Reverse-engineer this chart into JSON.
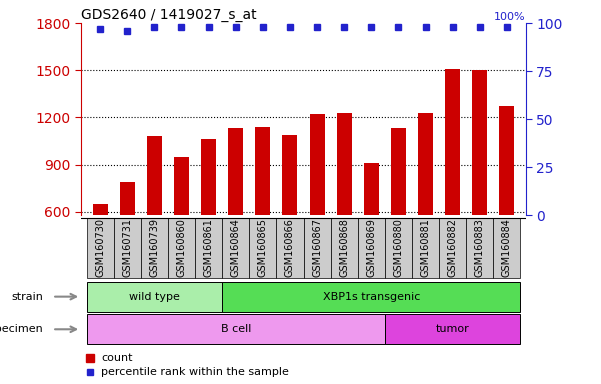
{
  "title": "GDS2640 / 1419027_s_at",
  "samples": [
    "GSM160730",
    "GSM160731",
    "GSM160739",
    "GSM160860",
    "GSM160861",
    "GSM160864",
    "GSM160865",
    "GSM160866",
    "GSM160867",
    "GSM160868",
    "GSM160869",
    "GSM160880",
    "GSM160881",
    "GSM160882",
    "GSM160883",
    "GSM160884"
  ],
  "counts": [
    650,
    790,
    1080,
    950,
    1060,
    1130,
    1140,
    1090,
    1220,
    1230,
    910,
    1130,
    1230,
    1510,
    1500,
    1270
  ],
  "percentile_ranks": [
    97,
    96,
    98,
    98,
    98,
    98,
    98,
    98,
    98,
    98,
    98,
    98,
    98,
    98,
    98,
    98
  ],
  "ylim_left": [
    580,
    1800
  ],
  "ylim_right": [
    0,
    100
  ],
  "yticks_left": [
    600,
    900,
    1200,
    1500,
    1800
  ],
  "yticks_right": [
    0,
    25,
    50,
    75,
    100
  ],
  "bar_color": "#cc0000",
  "dot_color": "#2222cc",
  "strain_groups": [
    {
      "label": "wild type",
      "start": 0,
      "end": 5,
      "color": "#aaeeaa"
    },
    {
      "label": "XBP1s transgenic",
      "start": 5,
      "end": 16,
      "color": "#55dd55"
    }
  ],
  "specimen_groups": [
    {
      "label": "B cell",
      "start": 0,
      "end": 11,
      "color": "#ee99ee"
    },
    {
      "label": "tumor",
      "start": 11,
      "end": 16,
      "color": "#dd44dd"
    }
  ],
  "strain_label": "strain",
  "specimen_label": "specimen",
  "legend_count_label": "count",
  "legend_percentile_label": "percentile rank within the sample",
  "bar_color_legend": "#cc0000",
  "dot_color_legend": "#2222cc",
  "tick_label_color": "#cc0000",
  "right_tick_color": "#2222cc",
  "title_color": "#000000",
  "title_fontsize": 10,
  "ticklabel_bg": "#cccccc",
  "ticklabel_fontsize": 7
}
